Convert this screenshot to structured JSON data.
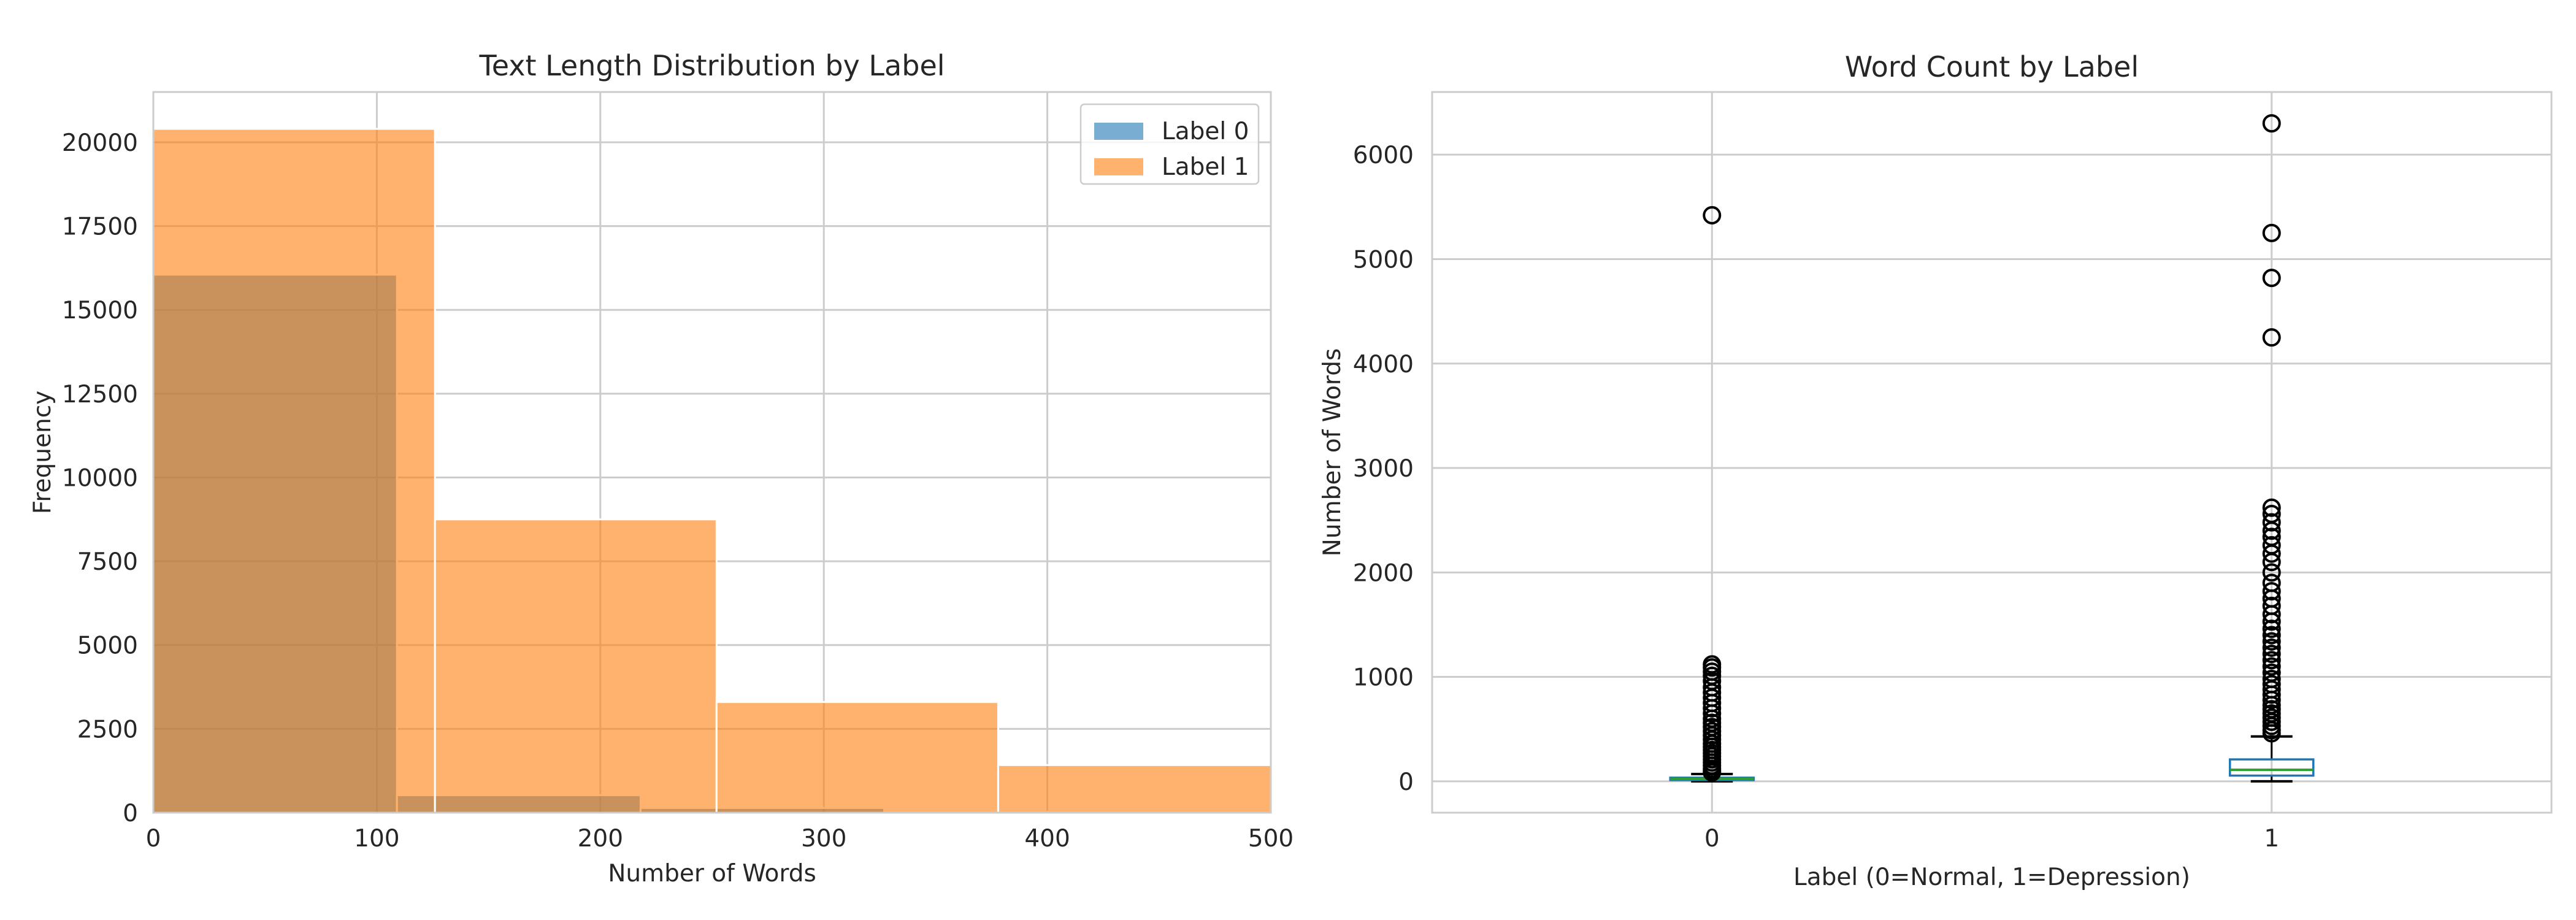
{
  "chart_data": [
    {
      "type": "bar",
      "subtype": "histogram",
      "title": "Text Length Distribution by Label",
      "xlabel": "Number of Words",
      "ylabel": "Frequency",
      "xlim": [
        0,
        500
      ],
      "ylim": [
        0,
        21500
      ],
      "xticks": [
        "0",
        "100",
        "200",
        "300",
        "400",
        "500"
      ],
      "yticks": [
        "0",
        "2500",
        "5000",
        "7500",
        "10000",
        "12500",
        "15000",
        "17500",
        "20000"
      ],
      "grid": true,
      "legend_position": "top-right",
      "series": [
        {
          "name": "Label 0",
          "color": "#1f77b4",
          "bins": [
            {
              "start": 0,
              "end": 109,
              "count": 16050
            },
            {
              "start": 109,
              "end": 218,
              "count": 520
            },
            {
              "start": 218,
              "end": 327,
              "count": 140
            },
            {
              "start": 327,
              "end": 436,
              "count": 30
            },
            {
              "start": 436,
              "end": 545,
              "count": 10
            }
          ]
        },
        {
          "name": "Label 1",
          "color": "#ff7f0e",
          "bins": [
            {
              "start": 0,
              "end": 126,
              "count": 20400
            },
            {
              "start": 126,
              "end": 252,
              "count": 8750
            },
            {
              "start": 252,
              "end": 378,
              "count": 3300
            },
            {
              "start": 378,
              "end": 504,
              "count": 1420
            }
          ]
        }
      ]
    },
    {
      "type": "box",
      "title": "Word Count by Label",
      "xlabel": "Label (0=Normal, 1=Depression)",
      "ylabel": "Number of Words",
      "categories": [
        "0",
        "1"
      ],
      "ylim": [
        -300,
        6600
      ],
      "yticks": [
        "0",
        "1000",
        "2000",
        "3000",
        "4000",
        "5000",
        "6000"
      ],
      "grid": true,
      "boxes": [
        {
          "label": "0",
          "whisker_low": 0,
          "q1": 12,
          "median": 22,
          "q3": 35,
          "whisker_high": 70,
          "outliers": [
            5420,
            1120,
            1090,
            1050,
            1010,
            960,
            900,
            850,
            800,
            750,
            700,
            650,
            600,
            560,
            520,
            480,
            440,
            400,
            360,
            330,
            300,
            270,
            240,
            210,
            180,
            150,
            120,
            100,
            85
          ]
        },
        {
          "label": "1",
          "whisker_low": 0,
          "q1": 55,
          "median": 110,
          "q3": 210,
          "whisker_high": 430,
          "outliers": [
            6300,
            5250,
            4820,
            4250,
            2620,
            2560,
            2480,
            2400,
            2340,
            2260,
            2180,
            2100,
            2000,
            1900,
            1820,
            1750,
            1680,
            1600,
            1530,
            1460,
            1400,
            1340,
            1280,
            1220,
            1160,
            1100,
            1040,
            980,
            930,
            880,
            830,
            780,
            730,
            690,
            650,
            610,
            570,
            530,
            490,
            460
          ]
        }
      ]
    }
  ]
}
